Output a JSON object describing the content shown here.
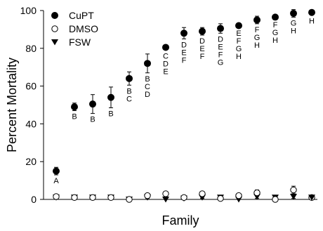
{
  "chart_data": {
    "type": "scatter",
    "title": "",
    "xlabel": "Family",
    "ylabel": "Percent Mortality",
    "ylim": [
      0,
      100
    ],
    "yticks": [
      0,
      20,
      40,
      60,
      80,
      100
    ],
    "x": [
      1,
      2,
      3,
      4,
      5,
      6,
      7,
      8,
      9,
      10,
      11,
      12,
      13,
      14
    ],
    "legend_position": "top-left",
    "grid": false,
    "series": [
      {
        "name": "CuPT",
        "marker": "filled-circle",
        "values": [
          15,
          49,
          50.5,
          54,
          64,
          72,
          80.5,
          88,
          89,
          90.5,
          92,
          95,
          96.5,
          98.5
        ],
        "errors": [
          2,
          2,
          5,
          5.5,
          3.5,
          5,
          0,
          3,
          2,
          2.5,
          1,
          2,
          1,
          2
        ],
        "labels": [
          [
            "A"
          ],
          [
            "B"
          ],
          [
            "B"
          ],
          [
            "B"
          ],
          [
            "B",
            "C"
          ],
          [
            "B",
            "C",
            "D"
          ],
          [
            "C",
            "D",
            "E"
          ],
          [
            "D",
            "E",
            "F"
          ],
          [
            "D",
            "E",
            "F"
          ],
          [
            "D",
            "E",
            "F",
            "G"
          ],
          [
            "E",
            "F",
            "G",
            "H"
          ],
          [
            "F",
            "G",
            "H"
          ],
          [
            "F",
            "G",
            "H"
          ],
          [
            "G",
            "H"
          ]
        ]
      },
      {
        "name": "DMSO",
        "marker": "open-circle",
        "values": [
          1.5,
          1,
          1,
          1,
          0,
          2,
          3,
          1,
          3,
          0.5,
          2,
          3.5,
          0,
          5
        ],
        "errors": [
          1,
          0.5,
          0.5,
          0.5,
          0.5,
          1,
          0.5,
          0.5,
          0.5,
          0.5,
          1,
          1.5,
          0.5,
          2
        ]
      },
      {
        "name": "FSW",
        "marker": "filled-triangle-down",
        "values": [
          1,
          1,
          1,
          1,
          0,
          1,
          0,
          0.5,
          1,
          1,
          0,
          1.5,
          1,
          1.5
        ],
        "errors": [
          1,
          0.5,
          0.5,
          0.5,
          0.5,
          0.5,
          0.5,
          0.5,
          0.5,
          0.5,
          0.5,
          1,
          1,
          1
        ]
      }
    ],
    "extra_points": [
      {
        "series": "CuPT",
        "x": 15,
        "value": 99
      },
      {
        "series": "DMSO",
        "x": 15,
        "value": 1
      },
      {
        "series": "FSW",
        "x": 15,
        "value": 1
      }
    ],
    "extra_labels": [
      [
        "H"
      ]
    ],
    "colors": {
      "marker": "#000000",
      "background": "#ffffff"
    }
  }
}
